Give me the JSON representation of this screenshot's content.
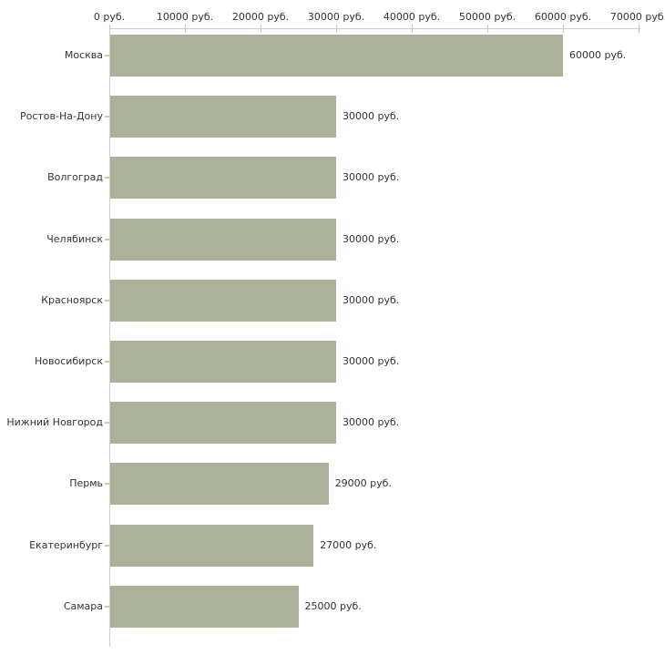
{
  "chart_data": {
    "type": "bar",
    "orientation": "horizontal",
    "title": "",
    "categories": [
      "Москва",
      "Ростов-На-Дону",
      "Волгоград",
      "Челябинск",
      "Красноярск",
      "Новосибирск",
      "Нижний Новгород",
      "Пермь",
      "Екатеринбург",
      "Самара"
    ],
    "values": [
      60000,
      30000,
      30000,
      30000,
      30000,
      30000,
      30000,
      29000,
      27000,
      25000
    ],
    "value_labels": [
      "60000 руб.",
      "30000 руб.",
      "30000 руб.",
      "30000 руб.",
      "30000 руб.",
      "30000 руб.",
      "30000 руб.",
      "29000 руб.",
      "27000 руб.",
      "25000 руб."
    ],
    "unit": "руб.",
    "x_axis": {
      "position": "top",
      "range": [
        0,
        70000
      ],
      "ticks": [
        0,
        10000,
        20000,
        30000,
        40000,
        50000,
        60000,
        70000
      ],
      "tick_labels": [
        "0 руб.",
        "10000 руб.",
        "20000 руб.",
        "30000 руб.",
        "40000 руб.",
        "50000 руб.",
        "60000 руб.",
        "70000 руб."
      ]
    },
    "grid": false,
    "legend": false,
    "colors": {
      "bar": "#acb199",
      "axis": "#cccccc",
      "tick": "#cccc99",
      "text": "#333333",
      "background": "#ffffff"
    }
  }
}
